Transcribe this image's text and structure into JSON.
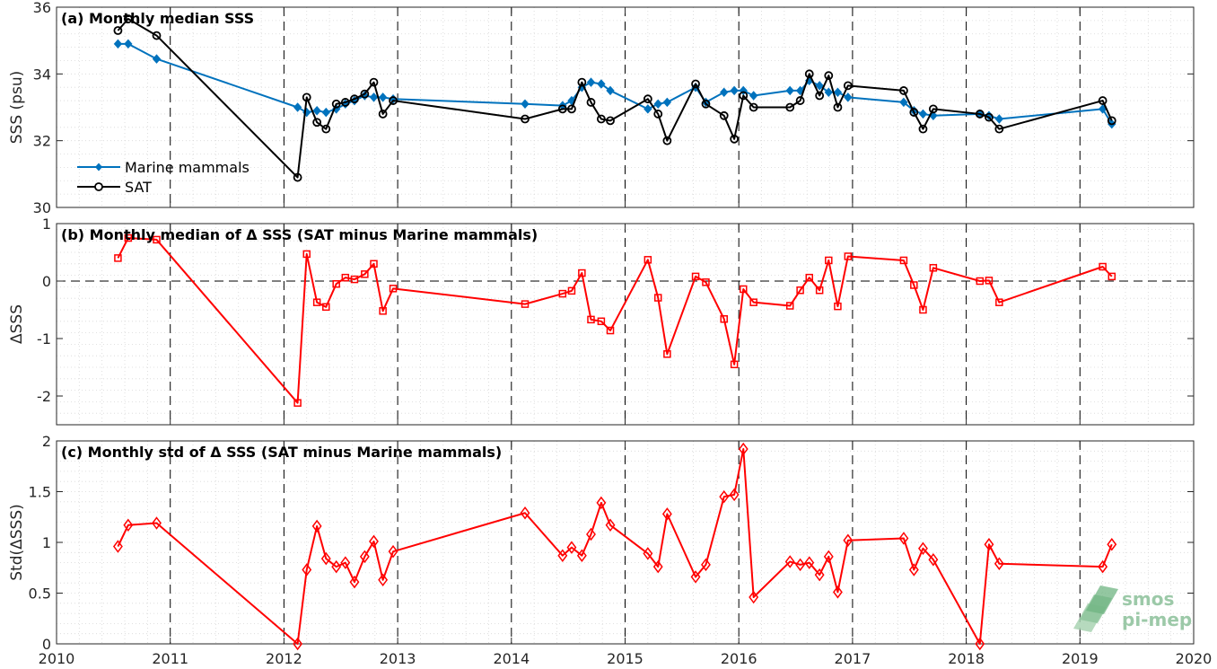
{
  "chart_data": [
    {
      "type": "line",
      "title": "(a) Monthly median SSS",
      "ylabel": "SSS (psu)",
      "xlim": [
        2010,
        2020
      ],
      "ylim": [
        30,
        36
      ],
      "yticks": [
        30,
        32,
        34,
        36
      ],
      "legend": "bottom-left",
      "grid": "dotted minor",
      "series": [
        {
          "name": "Marine mammals",
          "color": "#0072BD",
          "marker": "diamond-filled",
          "x": [
            2010.54,
            2010.63,
            2010.88,
            2012.12,
            2012.2,
            2012.29,
            2012.37,
            2012.46,
            2012.54,
            2012.62,
            2012.71,
            2012.79,
            2012.87,
            2012.96,
            2014.12,
            2014.45,
            2014.53,
            2014.62,
            2014.7,
            2014.79,
            2014.87,
            2015.2,
            2015.29,
            2015.37,
            2015.62,
            2015.71,
            2015.87,
            2015.96,
            2016.04,
            2016.13,
            2016.45,
            2016.54,
            2016.62,
            2016.71,
            2016.79,
            2016.87,
            2016.96,
            2017.45,
            2017.54,
            2017.62,
            2017.71,
            2018.12,
            2018.2,
            2018.29,
            2019.2,
            2019.28
          ],
          "y": [
            34.9,
            34.9,
            34.45,
            33.0,
            32.85,
            32.9,
            32.85,
            32.95,
            33.1,
            33.2,
            33.35,
            33.3,
            33.3,
            33.25,
            33.1,
            33.05,
            33.2,
            33.6,
            33.75,
            33.7,
            33.5,
            32.95,
            33.1,
            33.15,
            33.6,
            33.15,
            33.45,
            33.5,
            33.5,
            33.35,
            33.5,
            33.5,
            33.8,
            33.65,
            33.45,
            33.45,
            33.3,
            33.15,
            32.9,
            32.8,
            32.75,
            32.8,
            32.75,
            32.65,
            32.95,
            32.5
          ]
        },
        {
          "name": "SAT",
          "color": "#000000",
          "marker": "circle-open",
          "x": [
            2010.54,
            2010.63,
            2010.88,
            2012.12,
            2012.2,
            2012.29,
            2012.37,
            2012.46,
            2012.54,
            2012.62,
            2012.71,
            2012.79,
            2012.87,
            2012.96,
            2014.12,
            2014.45,
            2014.53,
            2014.62,
            2014.7,
            2014.79,
            2014.87,
            2015.2,
            2015.29,
            2015.37,
            2015.62,
            2015.71,
            2015.87,
            2015.96,
            2016.04,
            2016.13,
            2016.45,
            2016.54,
            2016.62,
            2016.71,
            2016.79,
            2016.87,
            2016.96,
            2017.45,
            2017.54,
            2017.62,
            2017.71,
            2018.12,
            2018.2,
            2018.29,
            2019.2,
            2019.28
          ],
          "y": [
            35.3,
            35.65,
            35.15,
            30.9,
            33.3,
            32.55,
            32.35,
            33.1,
            33.15,
            33.25,
            33.4,
            33.75,
            32.8,
            33.2,
            32.65,
            32.95,
            32.95,
            33.75,
            33.15,
            32.65,
            32.6,
            33.25,
            32.8,
            32.0,
            33.7,
            33.1,
            32.75,
            32.05,
            33.35,
            33.0,
            33.0,
            33.2,
            34.0,
            33.35,
            33.95,
            33.0,
            33.65,
            33.5,
            32.85,
            32.35,
            32.95,
            32.8,
            32.7,
            32.35,
            33.2,
            32.6
          ]
        }
      ]
    },
    {
      "type": "line",
      "title": "(b) Monthly median of Δ SSS (SAT minus Marine mammals)",
      "ylabel": "ΔSSS",
      "xlim": [
        2010,
        2020
      ],
      "ylim": [
        -2.5,
        1
      ],
      "yticks": [
        -2,
        -1,
        0,
        1
      ],
      "ref_line": 0,
      "series": [
        {
          "color": "#FF0000",
          "marker": "square-open",
          "x": [
            2010.54,
            2010.63,
            2010.88,
            2012.12,
            2012.2,
            2012.29,
            2012.37,
            2012.46,
            2012.54,
            2012.62,
            2012.71,
            2012.79,
            2012.87,
            2012.96,
            2014.12,
            2014.45,
            2014.53,
            2014.62,
            2014.7,
            2014.79,
            2014.87,
            2015.2,
            2015.29,
            2015.37,
            2015.62,
            2015.71,
            2015.87,
            2015.96,
            2016.04,
            2016.13,
            2016.45,
            2016.54,
            2016.62,
            2016.71,
            2016.79,
            2016.87,
            2016.96,
            2017.45,
            2017.54,
            2017.62,
            2017.71,
            2018.12,
            2018.2,
            2018.29,
            2019.2,
            2019.28
          ],
          "y": [
            0.4,
            0.75,
            0.72,
            -2.12,
            0.47,
            -0.37,
            -0.45,
            -0.05,
            0.06,
            0.03,
            0.12,
            0.3,
            -0.52,
            -0.13,
            -0.4,
            -0.22,
            -0.17,
            0.14,
            -0.67,
            -0.7,
            -0.86,
            0.37,
            -0.29,
            -1.27,
            0.08,
            -0.02,
            -0.66,
            -1.45,
            -0.14,
            -0.37,
            -0.43,
            -0.16,
            0.06,
            -0.16,
            0.36,
            -0.44,
            0.43,
            0.36,
            -0.07,
            -0.5,
            0.23,
            0.0,
            0.01,
            -0.37,
            0.25,
            0.08
          ]
        }
      ]
    },
    {
      "type": "line",
      "title": "(c) Monthly std of Δ SSS (SAT minus Marine mammals)",
      "ylabel": "Std(ΔSSS)",
      "xlim": [
        2010,
        2020
      ],
      "ylim": [
        0,
        2
      ],
      "yticks": [
        0,
        0.5,
        1,
        1.5,
        2
      ],
      "xticks": [
        2010,
        2011,
        2012,
        2013,
        2014,
        2015,
        2016,
        2017,
        2018,
        2019,
        2020
      ],
      "series": [
        {
          "color": "#FF0000",
          "marker": "diamond-open",
          "x": [
            2010.54,
            2010.63,
            2010.88,
            2012.12,
            2012.2,
            2012.29,
            2012.37,
            2012.46,
            2012.54,
            2012.62,
            2012.71,
            2012.79,
            2012.87,
            2012.96,
            2014.12,
            2014.45,
            2014.53,
            2014.62,
            2014.7,
            2014.79,
            2014.87,
            2015.2,
            2015.29,
            2015.37,
            2015.62,
            2015.71,
            2015.87,
            2015.96,
            2016.04,
            2016.13,
            2016.45,
            2016.54,
            2016.62,
            2016.71,
            2016.79,
            2016.87,
            2016.96,
            2017.45,
            2017.54,
            2017.62,
            2017.71,
            2018.12,
            2018.2,
            2018.29,
            2019.2,
            2019.28
          ],
          "y": [
            0.96,
            1.17,
            1.19,
            0.0,
            0.73,
            1.16,
            0.84,
            0.76,
            0.8,
            0.61,
            0.86,
            1.01,
            0.63,
            0.91,
            1.29,
            0.87,
            0.95,
            0.87,
            1.08,
            1.39,
            1.17,
            0.89,
            0.76,
            1.28,
            0.66,
            0.78,
            1.45,
            1.47,
            1.92,
            0.46,
            0.81,
            0.78,
            0.8,
            0.68,
            0.86,
            0.51,
            1.02,
            1.04,
            0.73,
            0.94,
            0.83,
            0.0,
            0.98,
            0.79,
            0.76,
            0.98
          ]
        }
      ]
    }
  ],
  "logo": {
    "line1": "smos",
    "line2": "pi-mep"
  }
}
